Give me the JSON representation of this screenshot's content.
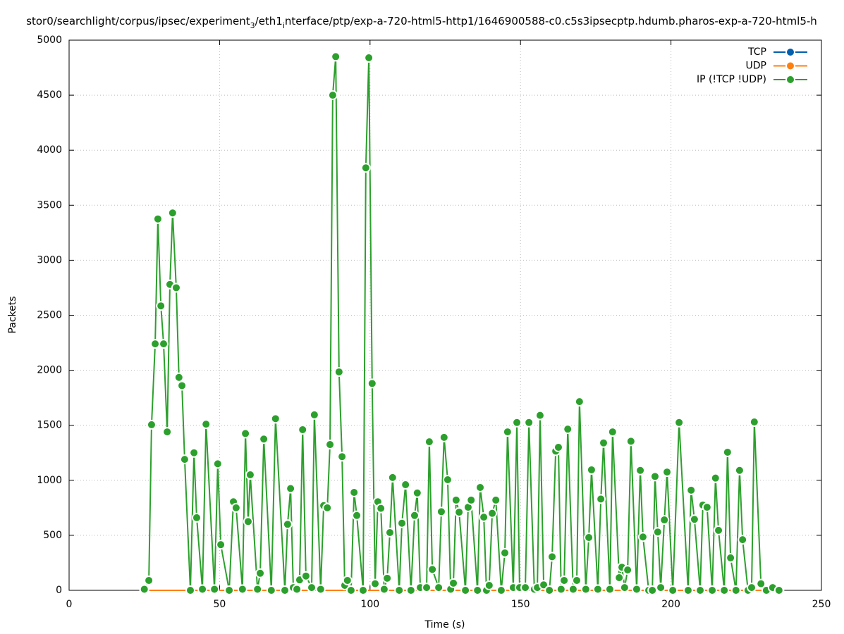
{
  "chart_data": {
    "type": "line",
    "title": [
      "stor0/searchlight/corpus/ipsec/experiment",
      "3",
      "/eth1",
      "i",
      "nterface/ptp/exp-a-720-html5-http1/1646900588-c0.c5s3ipsecptp.hdumb.pharos-exp-a-720-html5-h"
    ],
    "xlabel": "Time (s)",
    "ylabel": "Packets",
    "xlim": [
      0,
      250
    ],
    "xticks": [
      0,
      50,
      100,
      150,
      200,
      250
    ],
    "ylim": [
      0,
      5000
    ],
    "yticks": [
      0,
      500,
      1000,
      1500,
      2000,
      2500,
      3000,
      3500,
      4000,
      4500,
      5000
    ],
    "grid": true,
    "legend": "top-right",
    "series": [
      {
        "name": "TCP",
        "color": "#0060ad",
        "x": [
          25,
          236
        ],
        "values": [
          0,
          0
        ]
      },
      {
        "name": "UDP",
        "color": "#ff7f0e",
        "x": [
          25,
          236
        ],
        "values": [
          0,
          0
        ]
      },
      {
        "name": "IP (!TCP  !UDP)",
        "color": "#2ca02c",
        "x": [
          25,
          26.5,
          27.4,
          28.6,
          29.5,
          30.5,
          31.4,
          32.6,
          33.5,
          34.4,
          35.6,
          36.5,
          37.5,
          38.4,
          40.3,
          41.5,
          42.4,
          44.3,
          45.5,
          48.3,
          49.4,
          50.4,
          53.2,
          54.6,
          55.5,
          57.6,
          58.6,
          59.5,
          60.2,
          62.6,
          63.5,
          64.7,
          67.2,
          68.6,
          71.7,
          72.6,
          73.6,
          74.5,
          75.7,
          76.6,
          77.6,
          78.7,
          80.6,
          81.5,
          83.6,
          84.6,
          85.8,
          86.7,
          87.6,
          88.6,
          89.7,
          90.7,
          91.6,
          92.5,
          93.7,
          94.7,
          95.6,
          97.7,
          98.6,
          99.6,
          100.7,
          101.7,
          102.6,
          103.6,
          104.7,
          105.7,
          106.6,
          107.5,
          109.7,
          110.6,
          111.8,
          113.6,
          114.8,
          115.7,
          116.7,
          118.8,
          119.7,
          120.7,
          122.8,
          123.7,
          124.6,
          125.8,
          126.8,
          127.7,
          128.6,
          129.6,
          131.7,
          132.6,
          133.6,
          135.7,
          136.6,
          137.8,
          138.7,
          139.6,
          140.6,
          141.8,
          143.6,
          144.8,
          145.7,
          147.6,
          148.8,
          149.7,
          151.6,
          152.8,
          154.6,
          155.6,
          156.5,
          157.7,
          159.6,
          160.5,
          161.7,
          162.6,
          163.5,
          164.5,
          165.7,
          167.5,
          168.7,
          169.6,
          171.7,
          172.7,
          173.6,
          175.7,
          176.7,
          177.6,
          179.7,
          180.6,
          182.8,
          183.7,
          184.6,
          185.6,
          186.7,
          188.6,
          189.8,
          190.7,
          192.6,
          193.8,
          194.7,
          195.6,
          196.6,
          197.8,
          198.7,
          200.6,
          202.7,
          205.7,
          206.7,
          207.8,
          209.7,
          210.6,
          212.0,
          213.7,
          214.8,
          215.8,
          217.7,
          218.8,
          219.8,
          221.6,
          222.8,
          223.8,
          225.6,
          226.8,
          227.7,
          229.9,
          231.7,
          233.8,
          235.9
        ],
        "values": [
          10,
          90,
          1505,
          2240,
          3375,
          2585,
          2240,
          1440,
          2780,
          3430,
          2750,
          1935,
          1860,
          1190,
          0,
          1250,
          660,
          10,
          1510,
          10,
          1150,
          415,
          0,
          805,
          750,
          10,
          1425,
          625,
          1050,
          10,
          155,
          1375,
          0,
          1560,
          0,
          600,
          925,
          25,
          10,
          95,
          1460,
          130,
          25,
          1595,
          10,
          770,
          750,
          1325,
          4500,
          4850,
          1985,
          1215,
          45,
          90,
          0,
          890,
          680,
          0,
          3840,
          4840,
          1880,
          60,
          805,
          745,
          10,
          110,
          525,
          1025,
          0,
          610,
          960,
          0,
          680,
          885,
          25,
          25,
          1350,
          190,
          25,
          715,
          1390,
          1005,
          10,
          65,
          820,
          710,
          0,
          755,
          820,
          0,
          935,
          665,
          0,
          45,
          700,
          820,
          0,
          340,
          1440,
          25,
          1525,
          25,
          25,
          1525,
          10,
          25,
          1590,
          50,
          0,
          305,
          1265,
          1300,
          10,
          90,
          1465,
          10,
          90,
          1715,
          10,
          480,
          1095,
          10,
          830,
          1340,
          10,
          1440,
          115,
          210,
          25,
          185,
          1355,
          10,
          1090,
          485,
          0,
          0,
          1035,
          530,
          25,
          640,
          1075,
          0,
          1525,
          0,
          910,
          645,
          0,
          775,
          755,
          0,
          1020,
          545,
          0,
          1255,
          295,
          0,
          1090,
          460,
          0,
          25,
          1530,
          60,
          0,
          25,
          0
        ]
      }
    ]
  }
}
